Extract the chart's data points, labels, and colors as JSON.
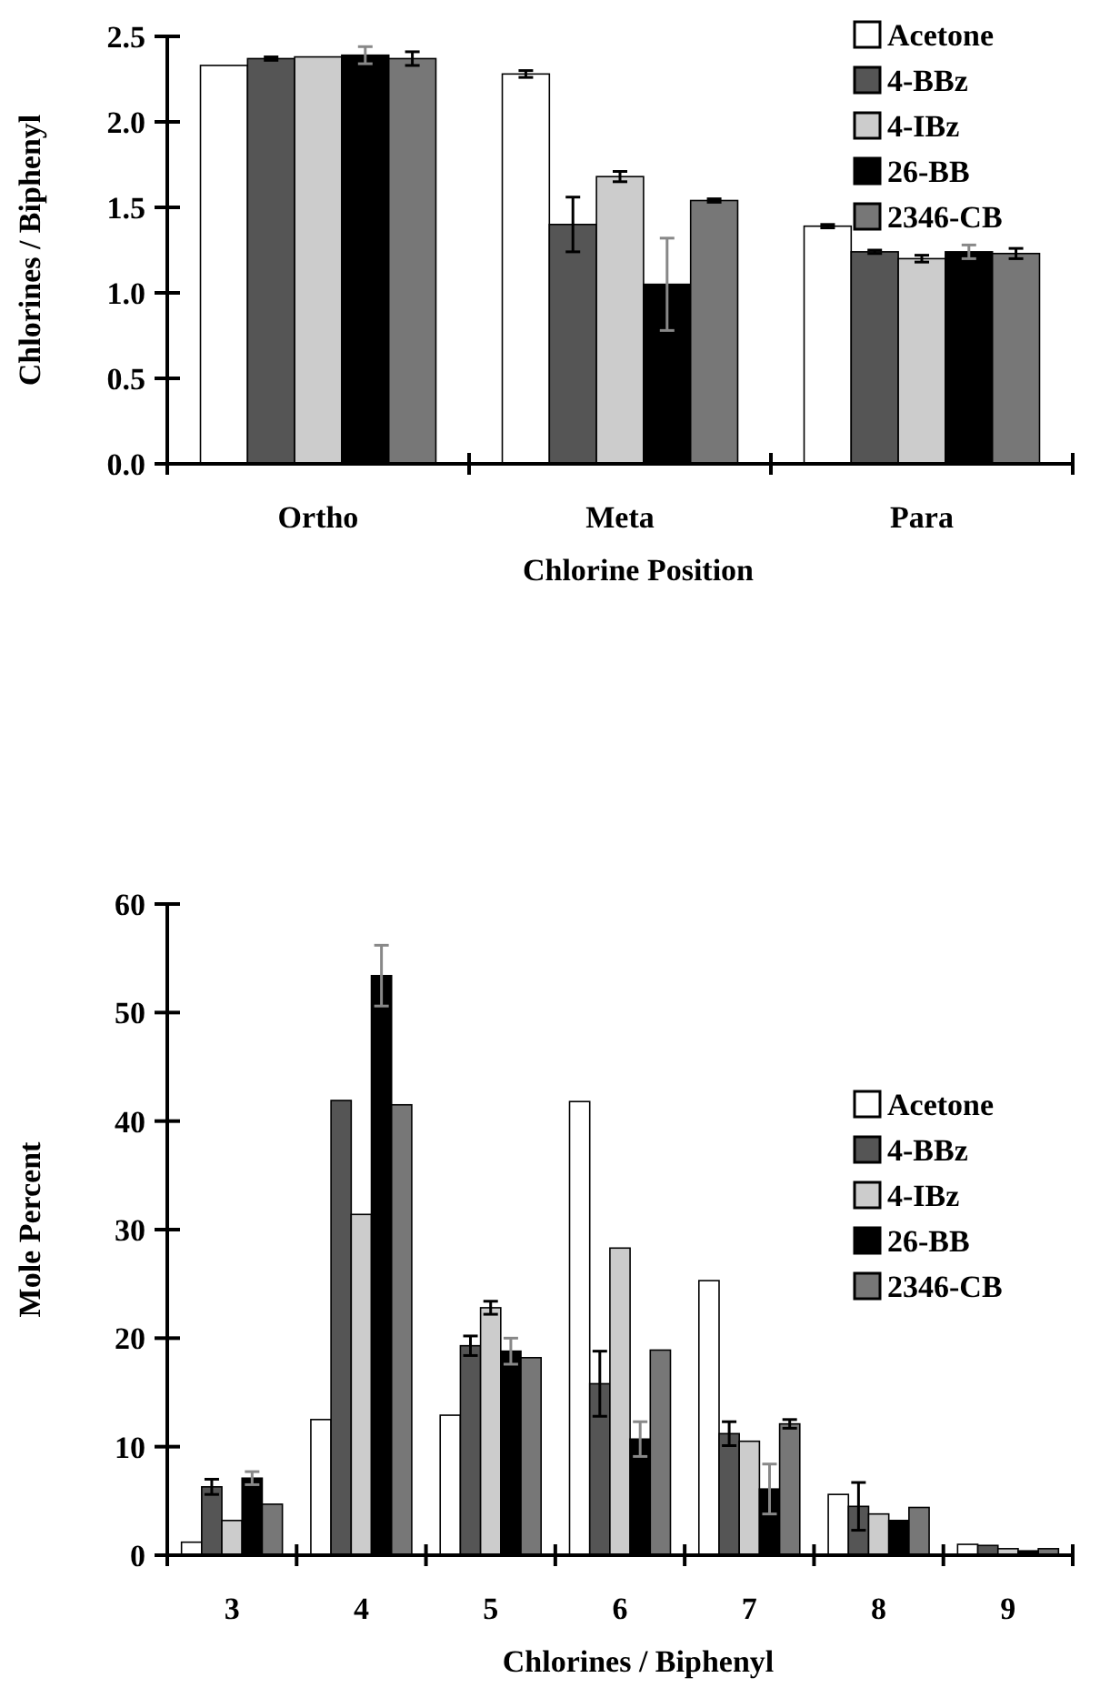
{
  "chart_data": [
    {
      "type": "bar",
      "ylabel": "Chlorines / Biphenyl",
      "xlabel": "Chlorine Position",
      "categories": [
        "Ortho",
        "Meta",
        "Para"
      ],
      "ylim": [
        0,
        2.5
      ],
      "yticks": [
        {
          "value": 0,
          "label": "0.0"
        },
        {
          "value": 0.5,
          "label": "0.5"
        },
        {
          "value": 1,
          "label": "1.0"
        },
        {
          "value": 1.5,
          "label": "1.5"
        },
        {
          "value": 2,
          "label": "2.0"
        },
        {
          "value": 2.5,
          "label": "2.5"
        }
      ],
      "legend": "top right",
      "grid": false,
      "series": [
        {
          "name": "Acetone",
          "color": "#ffffff",
          "values": [
            2.33,
            2.28,
            1.39
          ],
          "errors": [
            null,
            0.02,
            0.01
          ]
        },
        {
          "name": "4-BBz",
          "color": "#555555",
          "values": [
            2.37,
            1.4,
            1.24
          ],
          "errors": [
            0.01,
            0.16,
            0.01
          ]
        },
        {
          "name": "4-IBz",
          "color": "#cccccc",
          "values": [
            2.38,
            1.68,
            1.2
          ],
          "errors": [
            null,
            0.03,
            0.02
          ]
        },
        {
          "name": "26-BB",
          "color": "#000000",
          "values": [
            2.39,
            1.05,
            1.24
          ],
          "errors": [
            0.05,
            0.27,
            0.04
          ]
        },
        {
          "name": "2346-CB",
          "color": "#777777",
          "values": [
            2.37,
            1.54,
            1.23
          ],
          "errors": [
            0.04,
            0.01,
            0.03
          ]
        }
      ]
    },
    {
      "type": "bar",
      "ylabel": "Mole Percent",
      "xlabel": "Chlorines / Biphenyl",
      "categories": [
        "3",
        "4",
        "5",
        "6",
        "7",
        "8",
        "9"
      ],
      "ylim": [
        0,
        60
      ],
      "yticks": [
        0,
        10,
        20,
        30,
        40,
        50,
        60
      ],
      "legend": "right",
      "grid": false,
      "series": [
        {
          "name": "Acetone",
          "color": "#ffffff",
          "values": [
            1.2,
            12.5,
            12.9,
            41.8,
            25.3,
            5.6,
            1.0
          ]
        },
        {
          "name": "4-BBz",
          "color": "#555555",
          "values": [
            6.3,
            41.9,
            19.3,
            15.8,
            11.2,
            4.5,
            0.9
          ],
          "errors": [
            0.7,
            null,
            0.9,
            3,
            1.1,
            2.2,
            null
          ]
        },
        {
          "name": "4-IBz",
          "color": "#cccccc",
          "values": [
            3.2,
            31.4,
            22.8,
            28.3,
            10.5,
            3.8,
            0.6
          ],
          "errors": [
            null,
            null,
            0.6,
            null,
            null,
            null,
            null
          ]
        },
        {
          "name": "26-BB",
          "color": "#000000",
          "values": [
            7.1,
            53.4,
            18.8,
            10.7,
            6.1,
            3.2,
            0.4
          ],
          "errors": [
            0.6,
            2.8,
            1.2,
            1.6,
            2.3,
            null,
            null
          ]
        },
        {
          "name": "2346-CB",
          "color": "#777777",
          "values": [
            4.7,
            41.5,
            18.2,
            18.9,
            12.1,
            4.4,
            0.6
          ],
          "errors": [
            null,
            null,
            null,
            null,
            0.4,
            null,
            null
          ]
        }
      ]
    }
  ]
}
